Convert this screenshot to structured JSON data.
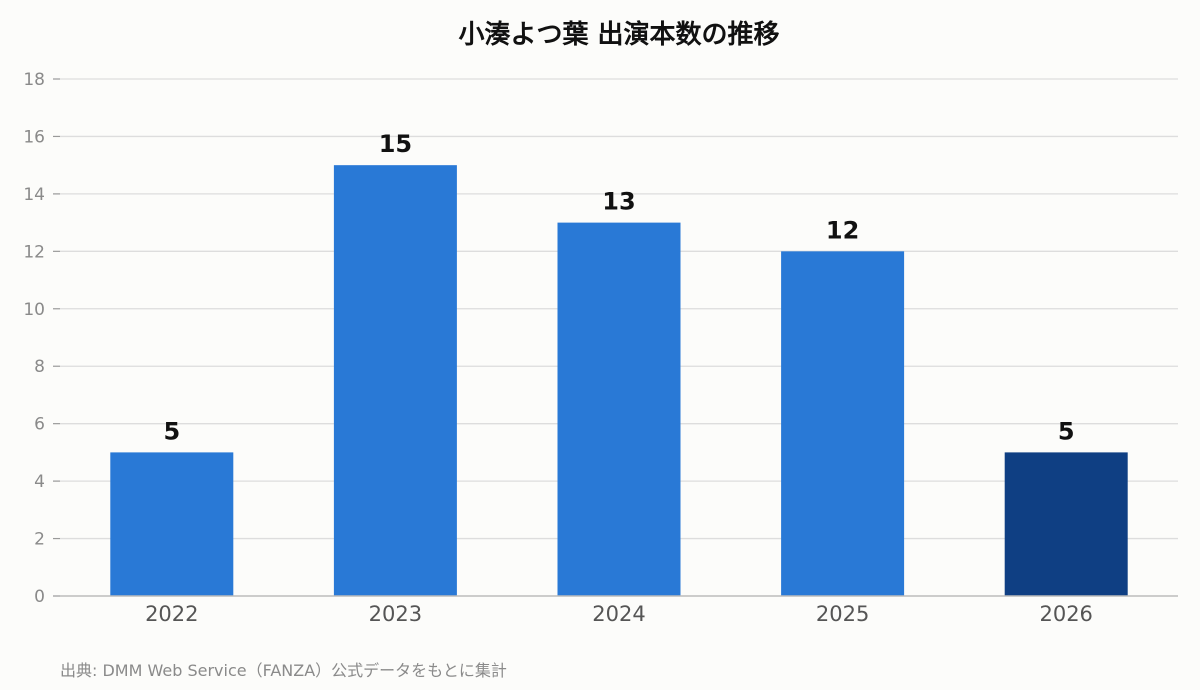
{
  "chart_data": {
    "type": "bar",
    "title": "小湊よつ葉 出演本数の推移",
    "categories": [
      "2022",
      "2023",
      "2024",
      "2025",
      "2026"
    ],
    "values": [
      5,
      15,
      13,
      12,
      5
    ],
    "xlabel": "",
    "ylabel": "",
    "ylim": [
      0,
      18
    ],
    "yticks": [
      0,
      2,
      4,
      6,
      8,
      10,
      12,
      14,
      16,
      18
    ],
    "grid": true,
    "data_labels": true,
    "colors": {
      "bar": "#2979d6",
      "highlight_bar": "#0f3f83",
      "gridline": "#dddddd",
      "axis": "#bbbbbb",
      "background": "#fcfcfa"
    },
    "highlight_category": "2026"
  },
  "source_note": "出典: DMM Web Service（FANZA）公式データをもとに集計"
}
